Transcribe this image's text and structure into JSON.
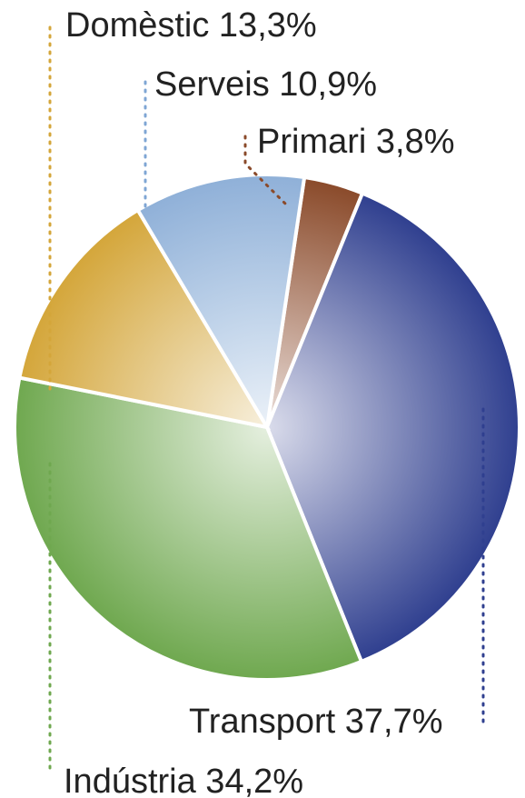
{
  "chart_data": {
    "type": "pie",
    "slices": [
      {
        "name": "Primari",
        "value": 3.8,
        "label": "Primari 3,8%",
        "color": "#8a4a2a"
      },
      {
        "name": "Transport",
        "value": 37.7,
        "label": "Transport 37,7%",
        "color": "#2f3f8f"
      },
      {
        "name": "Indústria",
        "value": 34.2,
        "label": "Indústria 34,2%",
        "color": "#6fa84f"
      },
      {
        "name": "Domèstic",
        "value": 13.3,
        "label": "Domèstic 13,3%",
        "color": "#d4a63a"
      },
      {
        "name": "Serveis",
        "value": 10.9,
        "label": "Serveis 10,9%",
        "color": "#8fb0d8"
      }
    ]
  }
}
